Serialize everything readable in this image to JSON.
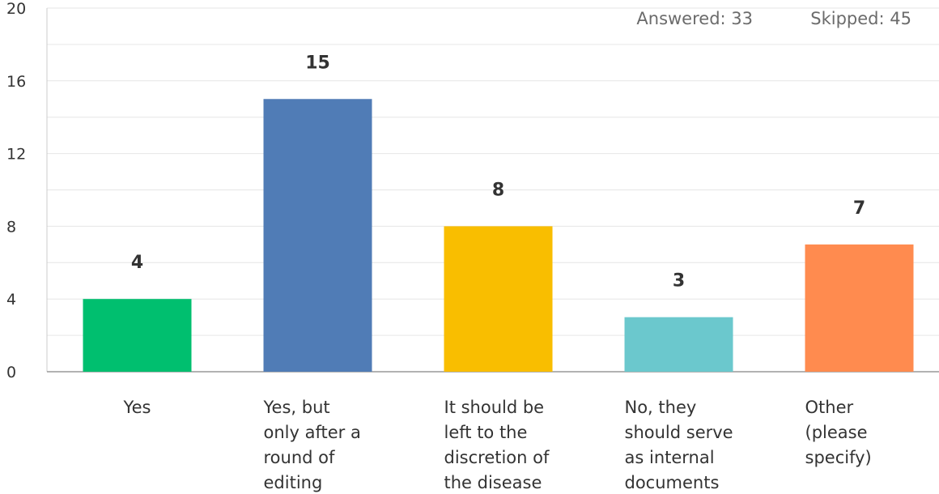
{
  "stats": {
    "answered": "Answered: 33",
    "skipped": "Skipped: 45"
  },
  "chart_data": {
    "type": "bar",
    "categories": [
      "Yes",
      "Yes, but only after a round of editing",
      "It should be left to the discretion of the disease",
      "No, they should serve as internal documents",
      "Other (please specify)"
    ],
    "category_lines": [
      [
        "Yes"
      ],
      [
        "Yes, but",
        "only after a",
        "round of",
        "editing"
      ],
      [
        "It should be",
        "left to the",
        "discretion of",
        "the disease"
      ],
      [
        "No, they",
        "should serve",
        "as internal",
        "documents"
      ],
      [
        "Other",
        "(please",
        "specify)"
      ]
    ],
    "values": [
      4,
      15,
      8,
      3,
      7
    ],
    "data_labels": [
      "4",
      "15",
      "8",
      "3",
      "7"
    ],
    "colors": [
      "#00bf6f",
      "#507cb6",
      "#f9be00",
      "#6bc8cd",
      "#ff8b4f"
    ],
    "ylim": [
      0,
      20
    ],
    "yticks": [
      0,
      4,
      8,
      12,
      16,
      20
    ],
    "ytick_labels": [
      "0",
      "4",
      "8",
      "12",
      "16",
      "20"
    ],
    "grid": true,
    "title": "",
    "xlabel": "",
    "ylabel": ""
  }
}
